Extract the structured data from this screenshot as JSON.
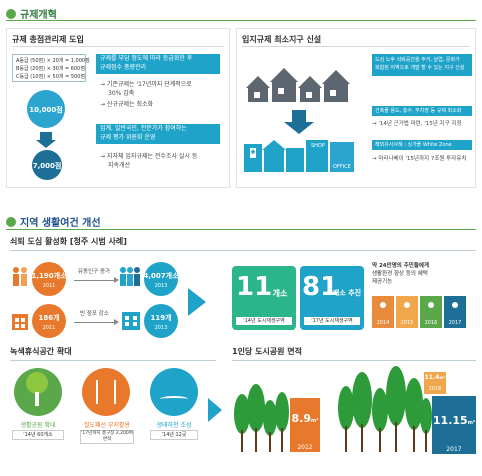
{
  "section1": {
    "title": "규제개혁",
    "left": {
      "heading": "규제 총점관리제 도입",
      "grades": [
        "A등급 (50점) × 20개 = 1,000점",
        "B등급 (20점) × 30개 = 600점",
        "C등급 (10점) × 50개 = 500점"
      ],
      "total_top": "10,000점",
      "total_bottom": "7,000점",
      "bar1": [
        "규제를 부담 정도에 따라 등급화한 후",
        "규제점수 총량관리"
      ],
      "notes1": [
        "→ 기존규제는 '17년까지 단계적으로",
        "30% 감축",
        "→ 신규규제는 최소화"
      ],
      "bar2": [
        "업계, 일반국민, 전문가가 참여하는",
        "규제 평가 위원회 운영"
      ],
      "notes2": [
        "→ 지자체 입지규제는 전수조사 실시 등",
        "지속개선"
      ]
    },
    "right": {
      "heading": "입지규제 최소지구 신설",
      "bar1": [
        "도심 노후 쇠퇴공간을 주거, 상업, 문화가",
        "복합된 지역으로 개발 할 수 있는 지구 신설"
      ],
      "bar2": "건축물 용도, 층수, 주차장 등 규제 최소화",
      "note2": "→ '14년 근거법 마련, '15년 지구 지정",
      "bar3": "해외유사사례 : 싱가폴 White Zone",
      "note3": "→ 마리나베이 '15년까지 7조원 투자유치",
      "shop_sign": "SHOP",
      "office_sign": "OFFICE"
    }
  },
  "section2": {
    "title": "지역 생활여건 개선",
    "downtown": {
      "heading": "쇠퇴 도심 활성화 [청주 시범 사례]",
      "row1_before_value": "1,190개소",
      "row1_before_year": "2011",
      "row1_label": "유동인구 증가",
      "row1_after_value": "4,007개소",
      "row1_after_year": "2013",
      "row2_before_value": "186개",
      "row2_before_year": "2011",
      "row2_label": "빈 점포 감소",
      "row2_after_value": "119개",
      "row2_after_year": "2013",
      "card1_num": "11",
      "card1_unit": "개소",
      "card1_caption": "'14년 도시재생구역",
      "card2_num": "81",
      "card2_unit": "개소 추진",
      "card2_caption": "'17년 도시재생구역",
      "benefit_text": [
        "약 24만명의 주민들에게",
        "생활환경 향상 등의 혜택",
        "제공기능"
      ],
      "benefit_years": [
        "2014",
        "2015",
        "2016",
        "2017"
      ]
    },
    "green": {
      "heading": "녹색휴식공간 확대",
      "items": [
        {
          "label": "생활공원 확대",
          "sub": "'14년 60개소"
        },
        {
          "label": "철도폐선 부지활용",
          "sub": "'17년까지 총구장 2,200여 면적"
        },
        {
          "label": "생태하천 조성",
          "sub": "'14년 12곳"
        }
      ]
    },
    "park": {
      "heading": "1인당 도시공원 면적",
      "bar1_value": "8.9",
      "bar1_unit": "m²",
      "bar1_year": "2012",
      "bar2_value": "11.15",
      "bar2_unit": "m²",
      "bar2_year": "2017",
      "bar3_value": "11.4",
      "bar3_unit": "m²",
      "bar3_year": "2016"
    }
  },
  "colors": {
    "teal": "#1fa3c9",
    "green": "#2d9b3a",
    "orange": "#e8792c",
    "navy": "#1d6f98"
  }
}
